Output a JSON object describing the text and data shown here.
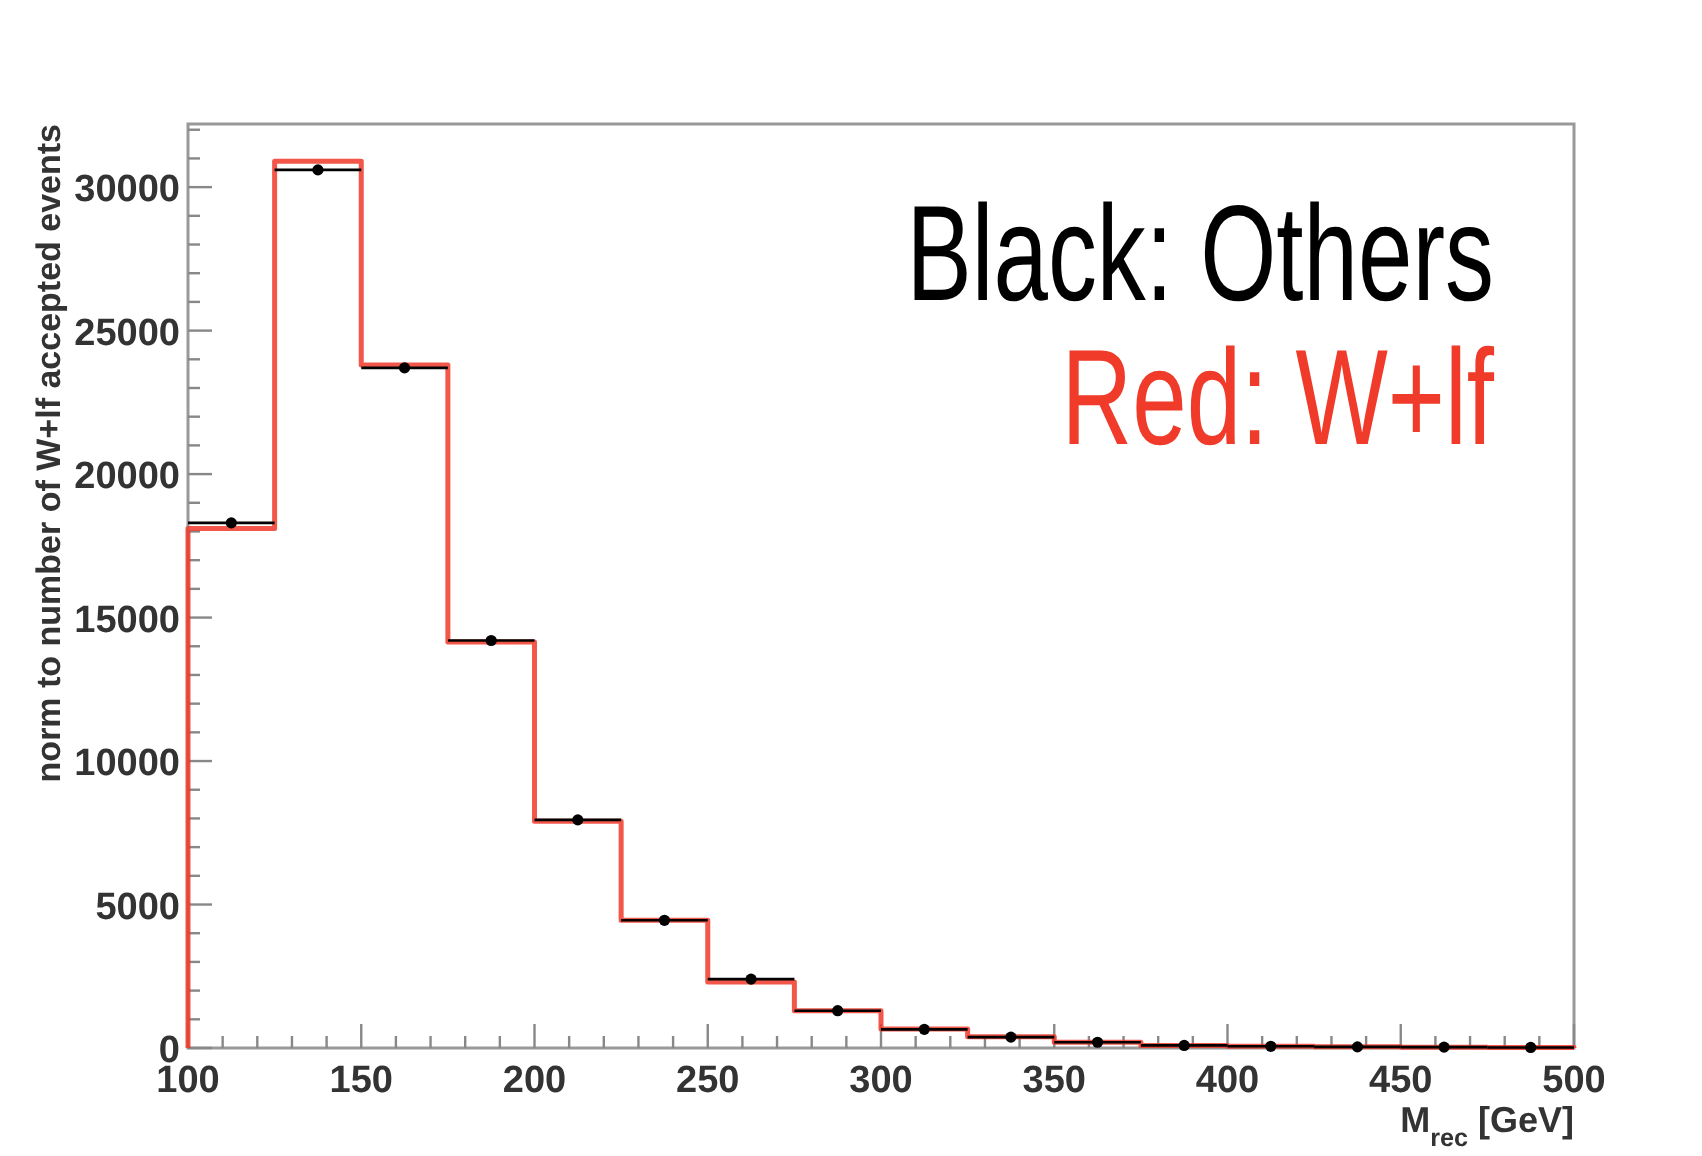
{
  "chart_data": {
    "type": "histogram",
    "xlabel": "M$_{rec}$ [GeV]",
    "ylabel": "norm to number of W+lf accepted events",
    "bins": [
      100,
      125,
      150,
      175,
      200,
      225,
      250,
      275,
      300,
      325,
      350,
      375,
      400,
      425,
      450,
      475,
      500
    ],
    "series": [
      {
        "name": "Black: Others",
        "type": "scatter",
        "color": "#000000",
        "x": [
          112.5,
          137.5,
          162.5,
          187.5,
          212.5,
          237.5,
          262.5,
          287.5,
          312.5,
          337.5,
          362.5,
          387.5,
          412.5,
          437.5,
          462.5,
          487.5
        ],
        "values": [
          18300,
          30600,
          23700,
          14200,
          7950,
          4450,
          2400,
          1300,
          650,
          380,
          200,
          90,
          60,
          40,
          30,
          20
        ],
        "xerrors": [
          12.5,
          12.5,
          12.5,
          12.5,
          12.5,
          12.5,
          12.5,
          12.5,
          12.5,
          12.5,
          12.5,
          12.5,
          12.5,
          12.5,
          12.5,
          12.5
        ]
      },
      {
        "name": "Red: W+lf",
        "color": "#f03a2a",
        "values": [
          18100,
          30900,
          23800,
          14150,
          7900,
          4450,
          2300,
          1300,
          660,
          390,
          200,
          90,
          60,
          40,
          30,
          20
        ]
      }
    ],
    "xlim": [
      100,
      500
    ],
    "ylim": [
      0,
      32200
    ],
    "xticks": [
      100,
      {
        "value": 110,
        "label": null
      },
      {
        "value": 120,
        "label": null
      },
      {
        "value": 130,
        "label": null
      },
      {
        "value": 140,
        "label": null
      },
      150,
      {
        "value": 160,
        "label": null
      },
      {
        "value": 170,
        "label": null
      },
      {
        "value": 180,
        "label": null
      },
      {
        "value": 190,
        "label": null
      },
      200,
      {
        "value": 210,
        "label": null
      },
      {
        "value": 220,
        "label": null
      },
      {
        "value": 230,
        "label": null
      },
      {
        "value": 240,
        "label": null
      },
      250,
      {
        "value": 260,
        "label": null
      },
      {
        "value": 270,
        "label": null
      },
      {
        "value": 280,
        "label": null
      },
      {
        "value": 290,
        "label": null
      },
      300,
      {
        "value": 310,
        "label": null
      },
      {
        "value": 320,
        "label": null
      },
      {
        "value": 330,
        "label": null
      },
      {
        "value": 340,
        "label": null
      },
      350,
      {
        "value": 360,
        "label": null
      },
      {
        "value": 370,
        "label": null
      },
      {
        "value": 380,
        "label": null
      },
      {
        "value": 390,
        "label": null
      },
      400,
      {
        "value": 410,
        "label": null
      },
      {
        "value": 420,
        "label": null
      },
      {
        "value": 430,
        "label": null
      },
      {
        "value": 440,
        "label": null
      },
      450,
      {
        "value": 460,
        "label": null
      },
      {
        "value": 470,
        "label": null
      },
      {
        "value": 480,
        "label": null
      },
      {
        "value": 490,
        "label": null
      },
      500
    ],
    "yticks": [
      0,
      {
        "value": 1000,
        "label": null
      },
      {
        "value": 2000,
        "label": null
      },
      {
        "value": 3000,
        "label": null
      },
      {
        "value": 4000,
        "label": null
      },
      5000,
      {
        "value": 6000,
        "label": null
      },
      {
        "value": 7000,
        "label": null
      },
      {
        "value": 8000,
        "label": null
      },
      {
        "value": 9000,
        "label": null
      },
      10000,
      {
        "value": 11000,
        "label": null
      },
      {
        "value": 12000,
        "label": null
      },
      {
        "value": 13000,
        "label": null
      },
      {
        "value": 14000,
        "label": null
      },
      15000,
      {
        "value": 16000,
        "label": null
      },
      {
        "value": 17000,
        "label": null
      },
      {
        "value": 18000,
        "label": null
      },
      {
        "value": 19000,
        "label": null
      },
      20000,
      {
        "value": 21000,
        "label": null
      },
      {
        "value": 22000,
        "label": null
      },
      {
        "value": 23000,
        "label": null
      },
      {
        "value": 24000,
        "label": null
      },
      25000,
      {
        "value": 26000,
        "label": null
      },
      {
        "value": 27000,
        "label": null
      },
      {
        "value": 28000,
        "label": null
      },
      {
        "value": 29000,
        "label": null
      },
      30000,
      {
        "value": 31000,
        "label": null
      },
      {
        "value": 32000,
        "label": null
      }
    ],
    "grid": false,
    "legend": "top right",
    "marker": "circle"
  }
}
